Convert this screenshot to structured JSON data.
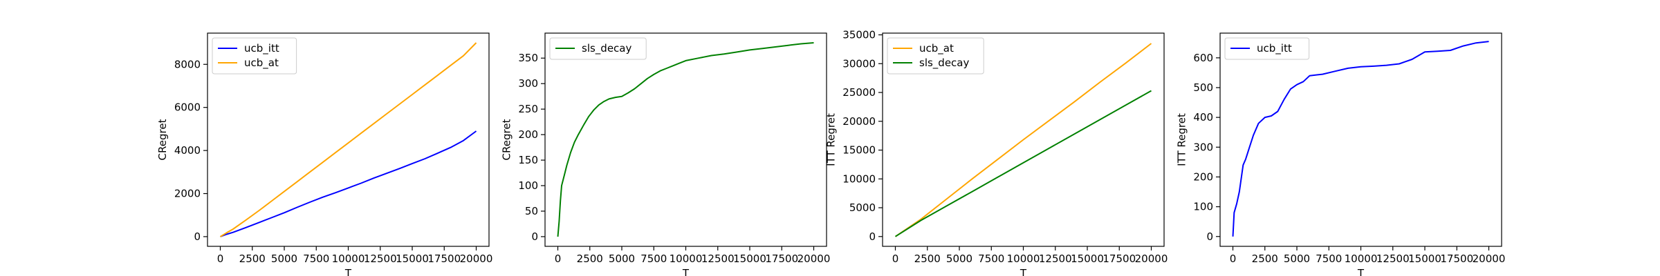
{
  "chart_data": [
    {
      "type": "line",
      "xlabel": "T",
      "ylabel": "CRegret",
      "xlim": [
        -1000,
        21000
      ],
      "ylim": [
        -450,
        9450
      ],
      "xticks": [
        0,
        2500,
        5000,
        7500,
        10000,
        12500,
        15000,
        17500,
        20000
      ],
      "yticks": [
        0,
        2000,
        4000,
        6000,
        8000
      ],
      "grid": false,
      "legend_position": "top-left",
      "series": [
        {
          "name": "ucb_itt",
          "color": "#0000ff",
          "x": [
            0,
            500,
            1000,
            2000,
            3000,
            4000,
            5000,
            6000,
            7000,
            8000,
            9000,
            10000,
            11000,
            12000,
            13000,
            14000,
            15000,
            16000,
            17000,
            18000,
            19000,
            20000
          ],
          "y": [
            0,
            110,
            200,
            420,
            650,
            880,
            1110,
            1360,
            1600,
            1830,
            2040,
            2260,
            2480,
            2720,
            2940,
            3160,
            3390,
            3620,
            3880,
            4140,
            4460,
            4900
          ]
        },
        {
          "name": "ucb_at",
          "color": "#ffa500",
          "x": [
            0,
            500,
            1000,
            2000,
            3000,
            4000,
            5000,
            6000,
            7000,
            8000,
            9000,
            10000,
            11000,
            12000,
            13000,
            14000,
            15000,
            16000,
            17000,
            18000,
            19000,
            20000
          ],
          "y": [
            0,
            180,
            350,
            770,
            1200,
            1650,
            2100,
            2550,
            3000,
            3450,
            3900,
            4350,
            4800,
            5250,
            5700,
            6150,
            6600,
            7050,
            7500,
            7950,
            8400,
            9000
          ]
        }
      ]
    },
    {
      "type": "line",
      "xlabel": "T",
      "ylabel": "CRegret",
      "xlim": [
        -1000,
        21000
      ],
      "ylim": [
        -19,
        399
      ],
      "xticks": [
        0,
        2500,
        5000,
        7500,
        10000,
        12500,
        15000,
        17500,
        20000
      ],
      "yticks": [
        0,
        50,
        100,
        150,
        200,
        250,
        300,
        350
      ],
      "grid": false,
      "legend_position": "top-left",
      "series": [
        {
          "name": "sls_decay",
          "color": "#008000",
          "x": [
            0,
            100,
            200,
            300,
            500,
            700,
            1000,
            1300,
            1600,
            2000,
            2400,
            2800,
            3200,
            3600,
            4000,
            4500,
            5000,
            5500,
            6000,
            6500,
            7000,
            7500,
            8000,
            8500,
            9000,
            9500,
            10000,
            11000,
            12000,
            13000,
            14000,
            15000,
            16000,
            17000,
            18000,
            19000,
            20000
          ],
          "y": [
            0,
            30,
            70,
            100,
            120,
            140,
            165,
            185,
            200,
            218,
            235,
            248,
            258,
            265,
            270,
            273,
            275,
            282,
            290,
            300,
            310,
            318,
            325,
            330,
            335,
            340,
            345,
            350,
            355,
            358,
            362,
            366,
            369,
            372,
            375,
            378,
            380
          ]
        }
      ]
    },
    {
      "type": "line",
      "xlabel": "T",
      "ylabel": "ITT Regret",
      "xlim": [
        -1000,
        21000
      ],
      "ylim": [
        -1700,
        35300
      ],
      "xticks": [
        0,
        2500,
        5000,
        7500,
        10000,
        12500,
        15000,
        17500,
        20000
      ],
      "yticks": [
        0,
        5000,
        10000,
        15000,
        20000,
        25000,
        30000,
        35000
      ],
      "grid": false,
      "legend_position": "top-left",
      "series": [
        {
          "name": "ucb_at",
          "color": "#ffa500",
          "x": [
            0,
            2000,
            4000,
            6000,
            8000,
            10000,
            12000,
            14000,
            16000,
            18000,
            20000
          ],
          "y": [
            0,
            3000,
            6500,
            10000,
            13400,
            16800,
            20100,
            23400,
            26800,
            30100,
            33500
          ]
        },
        {
          "name": "sls_decay",
          "color": "#008000",
          "x": [
            0,
            2000,
            4000,
            6000,
            8000,
            10000,
            12000,
            14000,
            16000,
            18000,
            20000
          ],
          "y": [
            0,
            2800,
            5300,
            7800,
            10300,
            12800,
            15300,
            17800,
            20300,
            22800,
            25300
          ]
        }
      ]
    },
    {
      "type": "line",
      "xlabel": "T",
      "ylabel": "ITT Regret",
      "xlim": [
        -1000,
        21000
      ],
      "ylim": [
        -33,
        683
      ],
      "xticks": [
        0,
        2500,
        5000,
        7500,
        10000,
        12500,
        15000,
        17500,
        20000
      ],
      "yticks": [
        0,
        100,
        200,
        300,
        400,
        500,
        600
      ],
      "grid": false,
      "legend_position": "top-left",
      "series": [
        {
          "name": "ucb_itt",
          "color": "#0000ff",
          "x": [
            0,
            100,
            300,
            500,
            800,
            1000,
            1300,
            1600,
            2000,
            2500,
            3000,
            3500,
            4000,
            4500,
            5000,
            5500,
            6000,
            7000,
            8000,
            9000,
            10000,
            11000,
            12000,
            13000,
            14000,
            15000,
            16000,
            17000,
            18000,
            19000,
            20000
          ],
          "y": [
            0,
            80,
            110,
            150,
            240,
            260,
            300,
            340,
            380,
            400,
            405,
            420,
            460,
            495,
            510,
            520,
            540,
            545,
            555,
            565,
            570,
            572,
            575,
            580,
            595,
            620,
            622,
            625,
            640,
            650,
            655
          ]
        }
      ]
    }
  ]
}
